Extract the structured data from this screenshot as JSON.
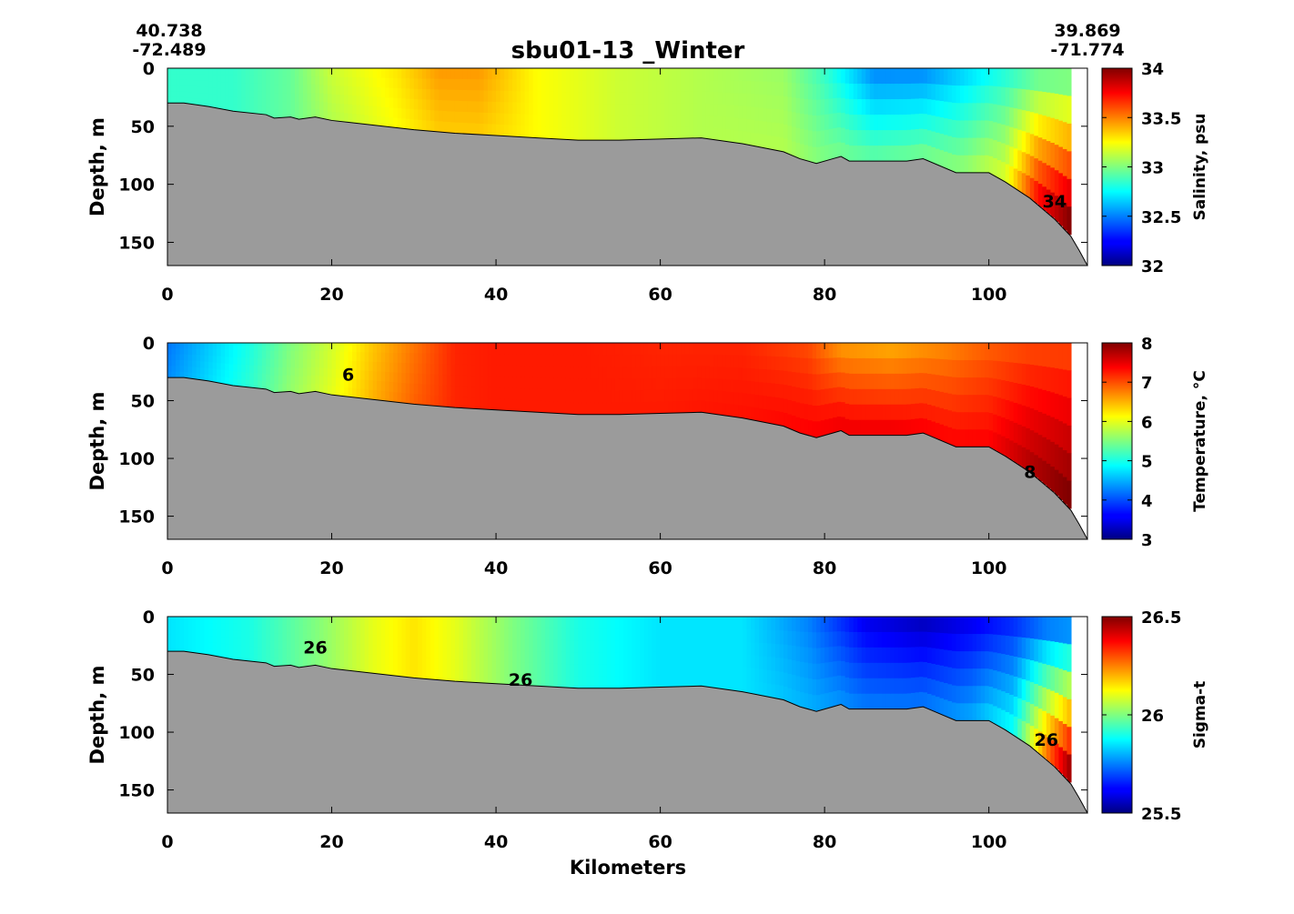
{
  "figure": {
    "title": "sbu01-13 _Winter",
    "start_station": {
      "lat": "40.738",
      "lon": "-72.489"
    },
    "end_station": {
      "lat": "39.869",
      "lon": "-71.774"
    },
    "xlabel": "Kilometers"
  },
  "colors": {
    "bottom_fill": "#9b9b9b",
    "colormap": "jet"
  },
  "chart_data": [
    {
      "type": "heatmap",
      "title": "",
      "xlabel": "",
      "ylabel": "Depth, m",
      "xlim": [
        0,
        112
      ],
      "ylim": [
        170,
        0
      ],
      "x_ticks": [
        "0",
        "20",
        "40",
        "60",
        "80",
        "100"
      ],
      "y_ticks": [
        "0",
        "50",
        "100",
        "150"
      ],
      "colorbar": {
        "label": "Salinity, psu",
        "range": [
          32,
          34
        ],
        "ticks": [
          "32",
          "32.5",
          "33",
          "33.5",
          "34"
        ]
      },
      "field_profile": {
        "x": [
          0,
          8,
          15,
          20,
          28,
          33,
          38,
          45,
          55,
          65,
          75,
          80,
          86,
          92,
          97,
          102,
          106,
          110
        ],
        "surface": [
          32.85,
          32.85,
          32.95,
          33.15,
          33.3,
          33.45,
          33.45,
          33.25,
          33.15,
          33.1,
          33.05,
          32.85,
          32.5,
          32.5,
          32.65,
          32.8,
          32.9,
          32.9
        ],
        "bottom": [
          32.85,
          32.85,
          32.95,
          33.1,
          33.25,
          33.35,
          33.35,
          33.25,
          33.15,
          33.1,
          33.1,
          33.0,
          32.95,
          33.0,
          33.05,
          33.2,
          33.8,
          34.1
        ]
      },
      "contour_labels": [
        "34"
      ]
    },
    {
      "type": "heatmap",
      "title": "",
      "xlabel": "",
      "ylabel": "Depth, m",
      "xlim": [
        0,
        112
      ],
      "ylim": [
        170,
        0
      ],
      "x_ticks": [
        "0",
        "20",
        "40",
        "60",
        "80",
        "100"
      ],
      "y_ticks": [
        "0",
        "50",
        "100",
        "150"
      ],
      "colorbar": {
        "label": "Temperature, °C",
        "range": [
          3,
          8
        ],
        "ticks": [
          "3",
          "4",
          "5",
          "6",
          "7",
          "8"
        ]
      },
      "field_profile": {
        "x": [
          0,
          5,
          10,
          15,
          20,
          25,
          30,
          35,
          40,
          50,
          60,
          70,
          78,
          82,
          88,
          95,
          100,
          105,
          110
        ],
        "surface": [
          4.2,
          4.6,
          5.0,
          5.5,
          5.9,
          6.4,
          6.8,
          7.2,
          7.25,
          7.25,
          7.2,
          7.2,
          7.0,
          6.6,
          6.5,
          6.7,
          6.9,
          7.0,
          7.0
        ],
        "bottom": [
          4.3,
          4.7,
          5.1,
          5.6,
          6.0,
          6.5,
          6.9,
          7.2,
          7.25,
          7.25,
          7.25,
          7.3,
          7.4,
          7.5,
          7.5,
          7.4,
          7.4,
          7.8,
          8.1
        ]
      },
      "contour_labels": [
        "6",
        "8"
      ]
    },
    {
      "type": "heatmap",
      "title": "",
      "xlabel": "Kilometers",
      "ylabel": "Depth, m",
      "xlim": [
        0,
        112
      ],
      "ylim": [
        170,
        0
      ],
      "x_ticks": [
        "0",
        "20",
        "40",
        "60",
        "80",
        "100"
      ],
      "y_ticks": [
        "0",
        "50",
        "100",
        "150"
      ],
      "colorbar": {
        "label": "Sigma-t",
        "range": [
          25.5,
          26.5
        ],
        "ticks": [
          "25.5",
          "26",
          "26.5"
        ]
      },
      "field_profile": {
        "x": [
          0,
          10,
          18,
          25,
          30,
          35,
          42,
          50,
          60,
          70,
          78,
          85,
          92,
          98,
          103,
          107,
          110
        ],
        "surface": [
          25.85,
          25.9,
          26.0,
          26.1,
          26.15,
          26.1,
          26.0,
          25.9,
          25.85,
          25.85,
          25.75,
          25.6,
          25.55,
          25.6,
          25.65,
          25.7,
          25.7
        ],
        "bottom": [
          25.85,
          25.9,
          26.0,
          26.1,
          26.15,
          26.1,
          26.0,
          25.9,
          25.85,
          25.85,
          25.8,
          25.75,
          25.75,
          25.8,
          25.9,
          26.3,
          26.55
        ]
      },
      "contour_labels": [
        "26",
        "26",
        "26"
      ]
    }
  ],
  "bathymetry": {
    "x": [
      0,
      2,
      5,
      8,
      12,
      13,
      15,
      16,
      18,
      20,
      25,
      30,
      35,
      40,
      45,
      50,
      55,
      60,
      65,
      70,
      75,
      77,
      79,
      81,
      82,
      83,
      85,
      90,
      92,
      96,
      100,
      102,
      105,
      108,
      110,
      111,
      112
    ],
    "depth": [
      30,
      30,
      33,
      37,
      40,
      43,
      42,
      44,
      42,
      45,
      49,
      53,
      56,
      58,
      60,
      62,
      62,
      61,
      60,
      65,
      72,
      78,
      82,
      78,
      76,
      80,
      80,
      80,
      78,
      90,
      90,
      98,
      112,
      130,
      145,
      157,
      170
    ]
  }
}
